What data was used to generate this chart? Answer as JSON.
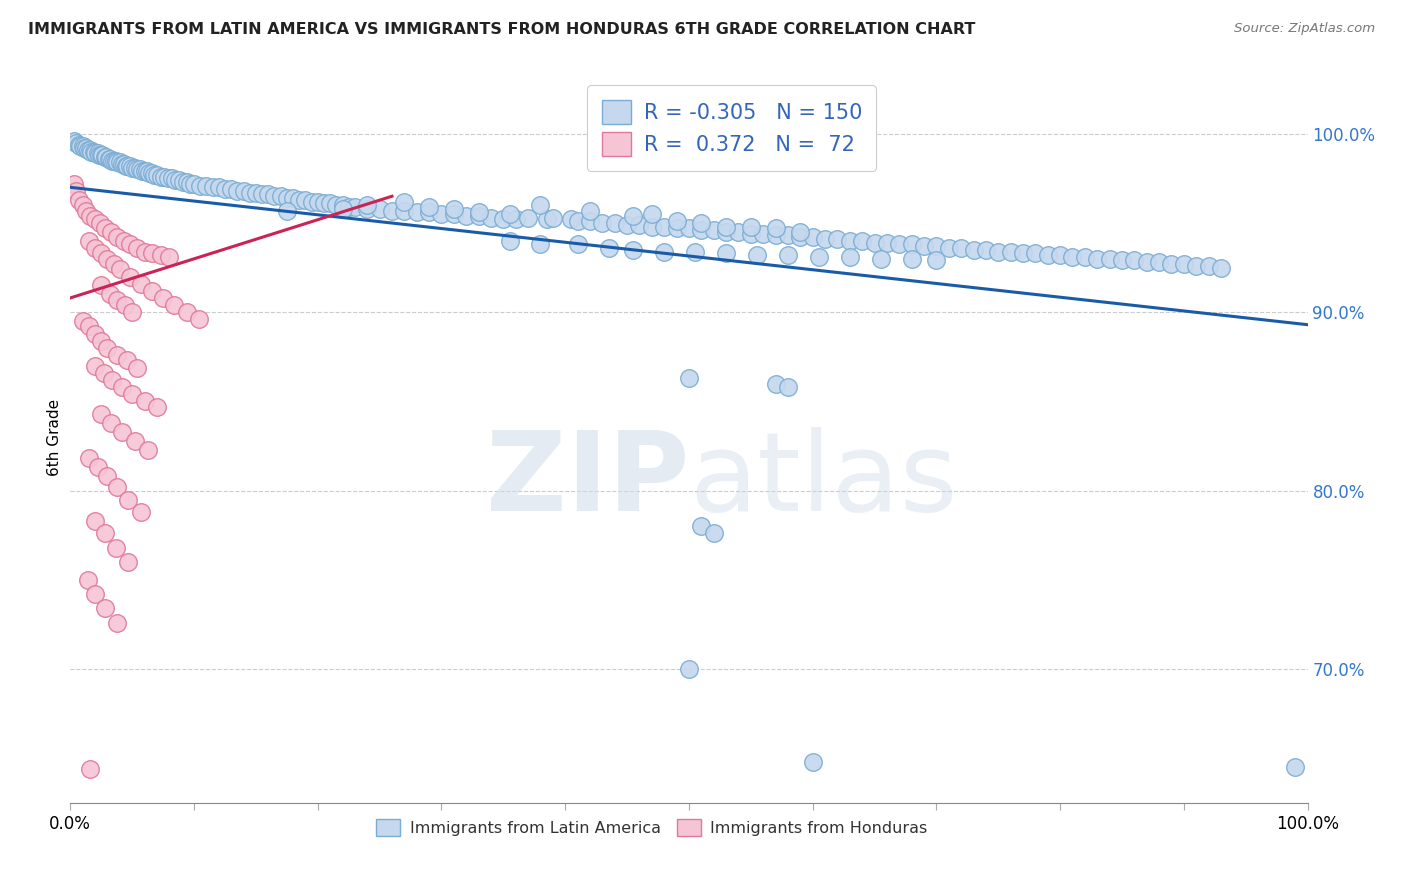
{
  "title": "IMMIGRANTS FROM LATIN AMERICA VS IMMIGRANTS FROM HONDURAS 6TH GRADE CORRELATION CHART",
  "source": "Source: ZipAtlas.com",
  "ylabel": "6th Grade",
  "blue_R": "-0.305",
  "blue_N": "150",
  "pink_R": "0.372",
  "pink_N": "72",
  "legend_label_blue": "Immigrants from Latin America",
  "legend_label_pink": "Immigrants from Honduras",
  "blue_color": "#c5d8ee",
  "blue_edge": "#7aadd4",
  "pink_color": "#f5c5d5",
  "pink_edge": "#e07898",
  "blue_line_color": "#1a5ba8",
  "pink_line_color": "#cc2255",
  "watermark_zip": "ZIP",
  "watermark_atlas": "atlas",
  "ytick_values": [
    0.7,
    0.8,
    0.9,
    1.0
  ],
  "ytick_labels": [
    "70.0%",
    "80.0%",
    "90.0%",
    "100.0%"
  ],
  "xlim": [
    0.0,
    1.0
  ],
  "ylim": [
    0.625,
    1.035
  ],
  "blue_trend_x": [
    0.0,
    1.0
  ],
  "blue_trend_y": [
    0.97,
    0.893
  ],
  "pink_trend_x": [
    0.0,
    0.26
  ],
  "pink_trend_y": [
    0.908,
    0.965
  ],
  "blue_pts": [
    [
      0.003,
      0.996
    ],
    [
      0.005,
      0.995
    ],
    [
      0.007,
      0.994
    ],
    [
      0.008,
      0.993
    ],
    [
      0.01,
      0.993
    ],
    [
      0.011,
      0.992
    ],
    [
      0.013,
      0.992
    ],
    [
      0.014,
      0.991
    ],
    [
      0.016,
      0.991
    ],
    [
      0.017,
      0.99
    ],
    [
      0.019,
      0.99
    ],
    [
      0.02,
      0.989
    ],
    [
      0.022,
      0.989
    ],
    [
      0.023,
      0.988
    ],
    [
      0.025,
      0.988
    ],
    [
      0.026,
      0.988
    ],
    [
      0.028,
      0.987
    ],
    [
      0.029,
      0.987
    ],
    [
      0.031,
      0.986
    ],
    [
      0.032,
      0.986
    ],
    [
      0.034,
      0.985
    ],
    [
      0.035,
      0.985
    ],
    [
      0.037,
      0.985
    ],
    [
      0.038,
      0.984
    ],
    [
      0.04,
      0.984
    ],
    [
      0.042,
      0.983
    ],
    [
      0.043,
      0.983
    ],
    [
      0.045,
      0.982
    ],
    [
      0.046,
      0.982
    ],
    [
      0.048,
      0.982
    ],
    [
      0.05,
      0.981
    ],
    [
      0.052,
      0.981
    ],
    [
      0.054,
      0.98
    ],
    [
      0.056,
      0.98
    ],
    [
      0.058,
      0.979
    ],
    [
      0.06,
      0.979
    ],
    [
      0.062,
      0.979
    ],
    [
      0.064,
      0.978
    ],
    [
      0.066,
      0.978
    ],
    [
      0.068,
      0.977
    ],
    [
      0.07,
      0.977
    ],
    [
      0.073,
      0.976
    ],
    [
      0.076,
      0.976
    ],
    [
      0.079,
      0.975
    ],
    [
      0.082,
      0.975
    ],
    [
      0.085,
      0.974
    ],
    [
      0.088,
      0.974
    ],
    [
      0.091,
      0.973
    ],
    [
      0.094,
      0.973
    ],
    [
      0.097,
      0.972
    ],
    [
      0.1,
      0.972
    ],
    [
      0.105,
      0.971
    ],
    [
      0.11,
      0.971
    ],
    [
      0.115,
      0.97
    ],
    [
      0.12,
      0.97
    ],
    [
      0.125,
      0.969
    ],
    [
      0.13,
      0.969
    ],
    [
      0.135,
      0.968
    ],
    [
      0.14,
      0.968
    ],
    [
      0.145,
      0.967
    ],
    [
      0.15,
      0.967
    ],
    [
      0.155,
      0.966
    ],
    [
      0.16,
      0.966
    ],
    [
      0.165,
      0.965
    ],
    [
      0.17,
      0.965
    ],
    [
      0.175,
      0.964
    ],
    [
      0.18,
      0.964
    ],
    [
      0.185,
      0.963
    ],
    [
      0.19,
      0.963
    ],
    [
      0.195,
      0.962
    ],
    [
      0.2,
      0.962
    ],
    [
      0.205,
      0.961
    ],
    [
      0.21,
      0.961
    ],
    [
      0.215,
      0.96
    ],
    [
      0.22,
      0.96
    ],
    [
      0.225,
      0.959
    ],
    [
      0.23,
      0.959
    ],
    [
      0.24,
      0.958
    ],
    [
      0.25,
      0.958
    ],
    [
      0.26,
      0.957
    ],
    [
      0.27,
      0.957
    ],
    [
      0.28,
      0.956
    ],
    [
      0.29,
      0.956
    ],
    [
      0.3,
      0.955
    ],
    [
      0.31,
      0.955
    ],
    [
      0.32,
      0.954
    ],
    [
      0.33,
      0.954
    ],
    [
      0.34,
      0.953
    ],
    [
      0.35,
      0.952
    ],
    [
      0.36,
      0.952
    ],
    [
      0.175,
      0.957
    ],
    [
      0.22,
      0.958
    ],
    [
      0.24,
      0.96
    ],
    [
      0.27,
      0.962
    ],
    [
      0.29,
      0.959
    ],
    [
      0.31,
      0.958
    ],
    [
      0.33,
      0.956
    ],
    [
      0.355,
      0.955
    ],
    [
      0.37,
      0.953
    ],
    [
      0.385,
      0.952
    ],
    [
      0.39,
      0.953
    ],
    [
      0.405,
      0.952
    ],
    [
      0.41,
      0.951
    ],
    [
      0.42,
      0.951
    ],
    [
      0.43,
      0.95
    ],
    [
      0.44,
      0.95
    ],
    [
      0.45,
      0.949
    ],
    [
      0.46,
      0.949
    ],
    [
      0.47,
      0.948
    ],
    [
      0.48,
      0.948
    ],
    [
      0.49,
      0.947
    ],
    [
      0.5,
      0.947
    ],
    [
      0.51,
      0.946
    ],
    [
      0.52,
      0.946
    ],
    [
      0.53,
      0.945
    ],
    [
      0.54,
      0.945
    ],
    [
      0.55,
      0.944
    ],
    [
      0.56,
      0.944
    ],
    [
      0.57,
      0.943
    ],
    [
      0.58,
      0.943
    ],
    [
      0.59,
      0.942
    ],
    [
      0.6,
      0.942
    ],
    [
      0.61,
      0.941
    ],
    [
      0.62,
      0.941
    ],
    [
      0.63,
      0.94
    ],
    [
      0.64,
      0.94
    ],
    [
      0.65,
      0.939
    ],
    [
      0.66,
      0.939
    ],
    [
      0.67,
      0.938
    ],
    [
      0.68,
      0.938
    ],
    [
      0.69,
      0.937
    ],
    [
      0.7,
      0.937
    ],
    [
      0.71,
      0.936
    ],
    [
      0.72,
      0.936
    ],
    [
      0.73,
      0.935
    ],
    [
      0.74,
      0.935
    ],
    [
      0.75,
      0.934
    ],
    [
      0.76,
      0.934
    ],
    [
      0.77,
      0.933
    ],
    [
      0.78,
      0.933
    ],
    [
      0.79,
      0.932
    ],
    [
      0.8,
      0.932
    ],
    [
      0.81,
      0.931
    ],
    [
      0.82,
      0.931
    ],
    [
      0.83,
      0.93
    ],
    [
      0.84,
      0.93
    ],
    [
      0.85,
      0.929
    ],
    [
      0.86,
      0.929
    ],
    [
      0.87,
      0.928
    ],
    [
      0.88,
      0.928
    ],
    [
      0.89,
      0.927
    ],
    [
      0.9,
      0.927
    ],
    [
      0.91,
      0.926
    ],
    [
      0.92,
      0.926
    ],
    [
      0.93,
      0.925
    ],
    [
      0.38,
      0.96
    ],
    [
      0.42,
      0.957
    ],
    [
      0.455,
      0.954
    ],
    [
      0.47,
      0.955
    ],
    [
      0.49,
      0.951
    ],
    [
      0.51,
      0.95
    ],
    [
      0.53,
      0.948
    ],
    [
      0.55,
      0.948
    ],
    [
      0.57,
      0.947
    ],
    [
      0.59,
      0.945
    ],
    [
      0.355,
      0.94
    ],
    [
      0.38,
      0.938
    ],
    [
      0.41,
      0.938
    ],
    [
      0.435,
      0.936
    ],
    [
      0.455,
      0.935
    ],
    [
      0.48,
      0.934
    ],
    [
      0.505,
      0.934
    ],
    [
      0.53,
      0.933
    ],
    [
      0.555,
      0.932
    ],
    [
      0.58,
      0.932
    ],
    [
      0.605,
      0.931
    ],
    [
      0.63,
      0.931
    ],
    [
      0.655,
      0.93
    ],
    [
      0.68,
      0.93
    ],
    [
      0.7,
      0.929
    ],
    [
      0.57,
      0.86
    ],
    [
      0.58,
      0.858
    ],
    [
      0.5,
      0.863
    ],
    [
      0.51,
      0.78
    ],
    [
      0.52,
      0.776
    ],
    [
      0.5,
      0.7
    ],
    [
      0.6,
      0.648
    ],
    [
      0.99,
      0.645
    ]
  ],
  "pink_pts": [
    [
      0.003,
      0.972
    ],
    [
      0.005,
      0.968
    ],
    [
      0.007,
      0.963
    ],
    [
      0.01,
      0.96
    ],
    [
      0.013,
      0.957
    ],
    [
      0.016,
      0.954
    ],
    [
      0.02,
      0.952
    ],
    [
      0.024,
      0.95
    ],
    [
      0.028,
      0.947
    ],
    [
      0.033,
      0.945
    ],
    [
      0.038,
      0.942
    ],
    [
      0.043,
      0.94
    ],
    [
      0.048,
      0.938
    ],
    [
      0.054,
      0.936
    ],
    [
      0.06,
      0.934
    ],
    [
      0.066,
      0.933
    ],
    [
      0.073,
      0.932
    ],
    [
      0.08,
      0.931
    ],
    [
      0.015,
      0.94
    ],
    [
      0.02,
      0.936
    ],
    [
      0.025,
      0.933
    ],
    [
      0.03,
      0.93
    ],
    [
      0.035,
      0.927
    ],
    [
      0.04,
      0.924
    ],
    [
      0.048,
      0.92
    ],
    [
      0.057,
      0.916
    ],
    [
      0.066,
      0.912
    ],
    [
      0.075,
      0.908
    ],
    [
      0.084,
      0.904
    ],
    [
      0.094,
      0.9
    ],
    [
      0.104,
      0.896
    ],
    [
      0.025,
      0.915
    ],
    [
      0.032,
      0.91
    ],
    [
      0.038,
      0.907
    ],
    [
      0.044,
      0.904
    ],
    [
      0.05,
      0.9
    ],
    [
      0.01,
      0.895
    ],
    [
      0.015,
      0.892
    ],
    [
      0.02,
      0.888
    ],
    [
      0.025,
      0.884
    ],
    [
      0.03,
      0.88
    ],
    [
      0.038,
      0.876
    ],
    [
      0.046,
      0.873
    ],
    [
      0.054,
      0.869
    ],
    [
      0.02,
      0.87
    ],
    [
      0.027,
      0.866
    ],
    [
      0.034,
      0.862
    ],
    [
      0.042,
      0.858
    ],
    [
      0.05,
      0.854
    ],
    [
      0.06,
      0.85
    ],
    [
      0.07,
      0.847
    ],
    [
      0.025,
      0.843
    ],
    [
      0.033,
      0.838
    ],
    [
      0.042,
      0.833
    ],
    [
      0.052,
      0.828
    ],
    [
      0.063,
      0.823
    ],
    [
      0.015,
      0.818
    ],
    [
      0.022,
      0.813
    ],
    [
      0.03,
      0.808
    ],
    [
      0.038,
      0.802
    ],
    [
      0.047,
      0.795
    ],
    [
      0.057,
      0.788
    ],
    [
      0.02,
      0.783
    ],
    [
      0.028,
      0.776
    ],
    [
      0.037,
      0.768
    ],
    [
      0.047,
      0.76
    ],
    [
      0.014,
      0.75
    ],
    [
      0.02,
      0.742
    ],
    [
      0.028,
      0.734
    ],
    [
      0.038,
      0.726
    ],
    [
      0.016,
      0.644
    ]
  ]
}
